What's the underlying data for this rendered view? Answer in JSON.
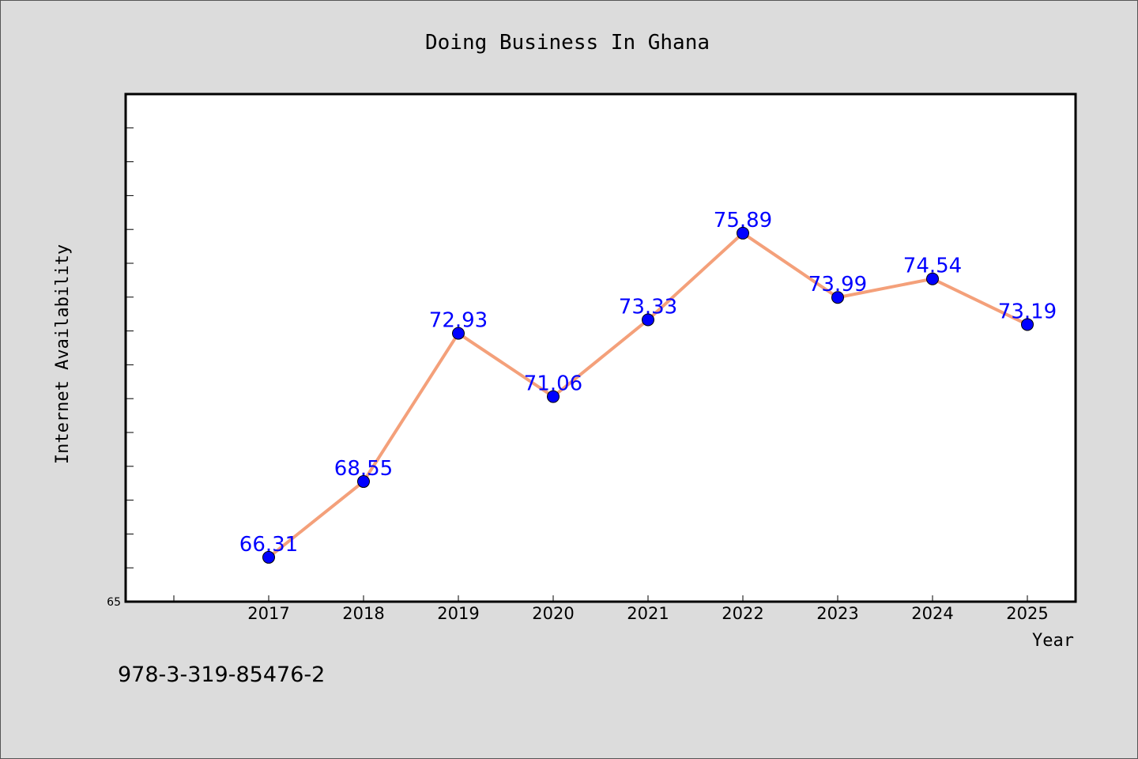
{
  "chart_data": {
    "type": "line",
    "title": "Doing Business In Ghana",
    "xlabel": "Year",
    "ylabel": "Internet Availability",
    "categories": [
      "2017",
      "2018",
      "2019",
      "2020",
      "2021",
      "2022",
      "2023",
      "2024",
      "2025"
    ],
    "series": [
      {
        "values": [
          66.31,
          68.55,
          72.93,
          71.06,
          73.33,
          75.89,
          73.99,
          74.54,
          73.19
        ],
        "line_color": "#f4a07a",
        "marker_color": "#0000ff"
      }
    ],
    "ylim": [
      65,
      80
    ],
    "y_tick_labels": [
      "65"
    ],
    "y_minor_tick_step": 1,
    "data_label_color": "#0000ff",
    "grid": false,
    "plot_background": "#ffffff",
    "figure_background": "#dcdcdc"
  },
  "footnote": "978-3-319-85476-2"
}
